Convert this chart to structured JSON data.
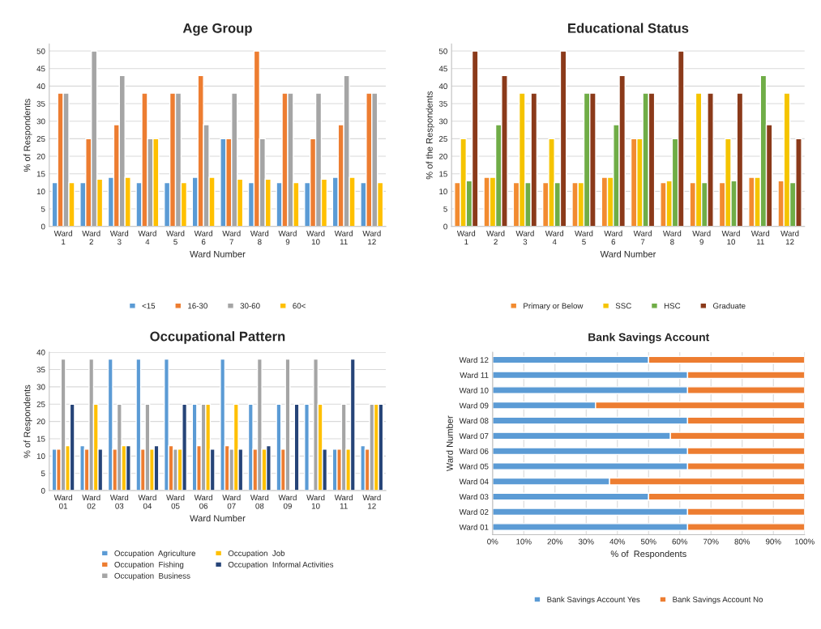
{
  "chart_data": [
    {
      "type": "bar",
      "title": "Age Group",
      "xlabel": "Ward Number",
      "ylabel": "% of Respondents",
      "categories": [
        "Ward 1",
        "Ward 2",
        "Ward 3",
        "Ward 4",
        "Ward 5",
        "Ward 6",
        "Ward 7",
        "Ward 8",
        "Ward 9",
        "Ward 10",
        "Ward 11",
        "Ward 12"
      ],
      "series": [
        {
          "name": "<15",
          "color": "#5b9bd5",
          "values": [
            12.5,
            12.5,
            14,
            12.5,
            12.5,
            14,
            25,
            12.5,
            12.5,
            12.5,
            14,
            12.5
          ]
        },
        {
          "name": "16-30",
          "color": "#ed7d31",
          "values": [
            38,
            25,
            29,
            38,
            38,
            43,
            25,
            50,
            38,
            25,
            29,
            38
          ]
        },
        {
          "name": "30-60",
          "color": "#a5a5a5",
          "values": [
            38,
            50,
            43,
            25,
            38,
            29,
            38,
            25,
            38,
            38,
            43,
            38
          ]
        },
        {
          "name": "60<",
          "color": "#ffc000",
          "values": [
            12.5,
            13.5,
            14,
            25,
            12.5,
            14,
            13.5,
            13.5,
            12.5,
            13.5,
            14,
            12.5
          ]
        }
      ],
      "ylim": [
        0,
        52
      ],
      "yticks": [
        0,
        5,
        10,
        15,
        20,
        25,
        30,
        35,
        40,
        45,
        50
      ],
      "grid": "y",
      "legend": "bottom"
    },
    {
      "type": "bar",
      "title": "Educational Status",
      "xlabel": "Ward Number",
      "ylabel": "% of the Respondents",
      "categories": [
        "Ward 1",
        "Ward 2",
        "Ward 3",
        "Ward 4",
        "Ward 5",
        "Ward 6",
        "Ward 7",
        "Ward 8",
        "Ward 9",
        "Ward 10",
        "Ward 11",
        "Ward 12"
      ],
      "series": [
        {
          "name": "Primary or Below",
          "color": "#f28b30",
          "values": [
            12.5,
            14,
            12.5,
            12.5,
            12.5,
            14,
            25,
            12.5,
            12.5,
            12.5,
            14,
            13
          ]
        },
        {
          "name": "SSC",
          "color": "#f5c400",
          "values": [
            25,
            14,
            38,
            25,
            12.5,
            14,
            25,
            13,
            38,
            25,
            14,
            38
          ]
        },
        {
          "name": "HSC",
          "color": "#70ad47",
          "values": [
            13,
            29,
            12.5,
            12.5,
            38,
            29,
            38,
            25,
            12.5,
            13,
            43,
            12.5
          ]
        },
        {
          "name": "Graduate",
          "color": "#8b3a1a",
          "values": [
            50,
            43,
            38,
            50,
            38,
            43,
            38,
            50,
            38,
            38,
            29,
            25
          ]
        }
      ],
      "ylim": [
        0,
        52
      ],
      "yticks": [
        0,
        5,
        10,
        15,
        20,
        25,
        30,
        35,
        40,
        45,
        50
      ],
      "grid": "y",
      "legend": "bottom"
    },
    {
      "type": "bar",
      "title": "Occupational Pattern",
      "xlabel": "Ward Number",
      "ylabel": "% of Respondents",
      "categories": [
        "Ward 01",
        "Ward 02",
        "Ward 03",
        "Ward 04",
        "Ward 05",
        "Ward 06",
        "Ward 07",
        "Ward 08",
        "Ward 09",
        "Ward 10",
        "Ward 11",
        "Ward 12"
      ],
      "series": [
        {
          "name": "Occupation  Agriculture",
          "color": "#5b9bd5",
          "values": [
            12,
            13,
            38,
            38,
            38,
            25,
            38,
            25,
            25,
            25,
            12,
            13
          ]
        },
        {
          "name": "Occupation  Fishing",
          "color": "#ed7d31",
          "values": [
            12,
            12,
            12,
            12,
            13,
            13,
            13,
            12,
            12,
            null,
            12,
            12
          ]
        },
        {
          "name": "Occupation  Business",
          "color": "#a5a5a5",
          "values": [
            38,
            38,
            25,
            25,
            12,
            25,
            12,
            38,
            38,
            38,
            25,
            25
          ]
        },
        {
          "name": "Occupation  Job",
          "color": "#ffc000",
          "values": [
            13,
            25,
            13,
            12,
            12,
            25,
            25,
            12,
            null,
            25,
            12,
            25
          ]
        },
        {
          "name": "Occupation  Informal Activities",
          "color": "#264478",
          "values": [
            25,
            12,
            13,
            13,
            25,
            12,
            12,
            13,
            25,
            12,
            38,
            25
          ]
        }
      ],
      "ylim": [
        0,
        40
      ],
      "yticks": [
        0,
        5,
        10,
        15,
        20,
        25,
        30,
        35,
        40
      ],
      "grid": "y",
      "legend": "bottom"
    },
    {
      "type": "bar",
      "title": "Bank Savings Account",
      "xlabel": "% of  Respondents",
      "ylabel": "Ward Number",
      "orientation": "horizontal",
      "stacked": true,
      "categories": [
        "Ward 12",
        "Ward 11",
        "Ward 10",
        "Ward 09",
        "Ward 08",
        "Ward 07",
        "Ward 06",
        "Ward 05",
        "Ward 04",
        "Ward 03",
        "Ward 02",
        "Ward 01"
      ],
      "series": [
        {
          "name": "Bank Savings Account Yes",
          "color": "#5b9bd5",
          "values": [
            50,
            62.5,
            62.5,
            33,
            62.5,
            57,
            62.5,
            62.5,
            37.5,
            50,
            62.5,
            62.5
          ]
        },
        {
          "name": "Bank Savings Account No",
          "color": "#ed7d31",
          "values": [
            50,
            37.5,
            37.5,
            67,
            37.5,
            43,
            37.5,
            37.5,
            62.5,
            50,
            37.5,
            37.5
          ]
        }
      ],
      "xlim": [
        0,
        100
      ],
      "xticks": [
        {
          "value": 0,
          "label": "0%"
        },
        {
          "value": 10,
          "label": "10%"
        },
        {
          "value": 20,
          "label": "20%"
        },
        {
          "value": 30,
          "label": "30%"
        },
        {
          "value": 40,
          "label": "40%"
        },
        {
          "value": 50,
          "label": "50%"
        },
        {
          "value": 60,
          "label": "60%"
        },
        {
          "value": 70,
          "label": "70%"
        },
        {
          "value": 80,
          "label": "80%"
        },
        {
          "value": 90,
          "label": "90%"
        },
        {
          "value": 100,
          "label": "100%"
        }
      ],
      "grid": "x",
      "legend": "bottom"
    }
  ]
}
